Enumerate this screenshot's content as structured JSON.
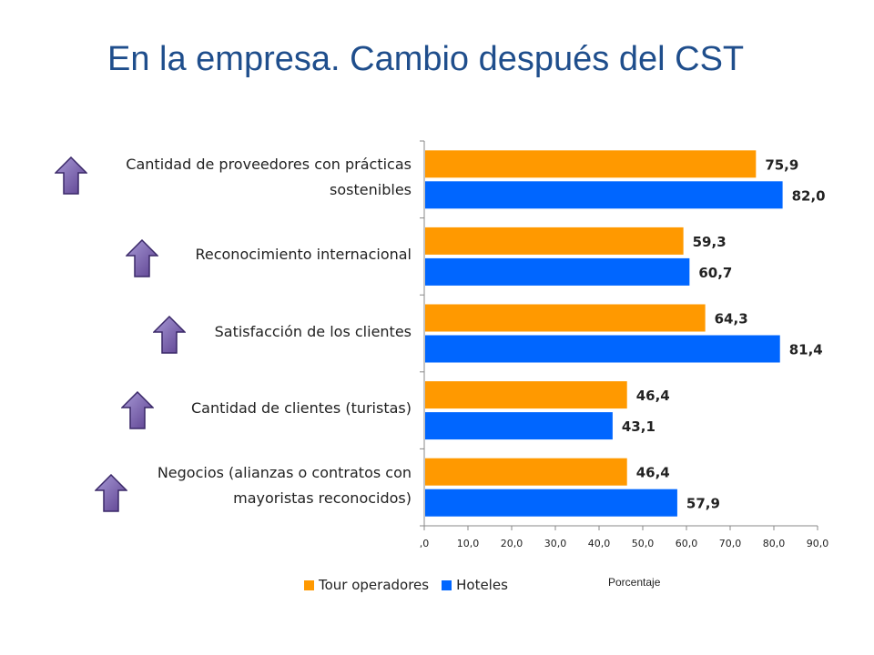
{
  "title": "En la empresa. Cambio después del CST",
  "icons": [
    "up-arrow-icon"
  ],
  "chart_data": {
    "type": "bar",
    "orientation": "horizontal",
    "categories": [
      "Cantidad de proveedores con prácticas sostenibles",
      "Reconocimiento internacional",
      "Satisfacción de los clientes",
      "Cantidad de clientes (turistas)",
      "Negocios (alianzas o contratos con mayoristas reconocidos)"
    ],
    "category_lines": [
      [
        "Cantidad de proveedores con prácticas",
        "sostenibles"
      ],
      [
        "Reconocimiento internacional"
      ],
      [
        "Satisfacción de los clientes"
      ],
      [
        "Cantidad de clientes (turistas)"
      ],
      [
        "Negocios (alianzas o contratos con",
        "mayoristas reconocidos)"
      ]
    ],
    "series": [
      {
        "name": "Tour operadores",
        "color": "#ff9900",
        "values": [
          75.9,
          59.3,
          64.3,
          46.4,
          46.4
        ],
        "labels": [
          "75,9",
          "59,3",
          "64,3",
          "46,4",
          "46,4"
        ]
      },
      {
        "name": "Hoteles",
        "color": "#0066ff",
        "values": [
          82.0,
          60.7,
          81.4,
          43.1,
          57.9
        ],
        "labels": [
          "82,0",
          "60,7",
          "81,4",
          "43,1",
          "57,9"
        ]
      }
    ],
    "xlim": [
      0,
      90
    ],
    "xticks": [
      0,
      10,
      20,
      30,
      40,
      50,
      60,
      70,
      80,
      90
    ],
    "xtick_labels": [
      ",0",
      "10,0",
      "20,0",
      "30,0",
      "40,0",
      "50,0",
      "60,0",
      "70,0",
      "80,0",
      "90,0"
    ],
    "xlabel": "Porcentaje",
    "grid": false,
    "legend_position": "bottom"
  }
}
